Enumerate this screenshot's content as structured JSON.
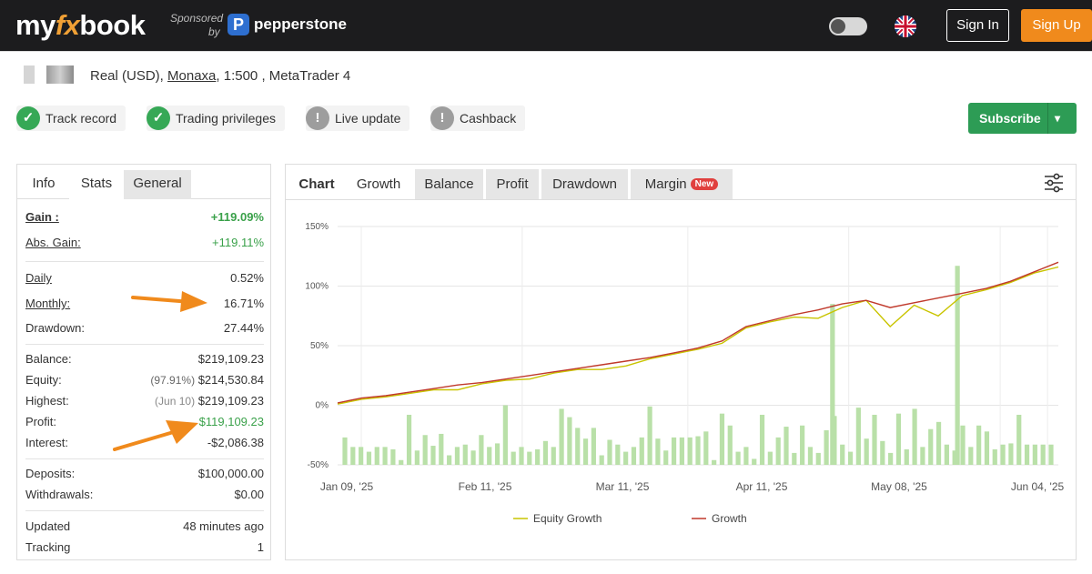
{
  "header": {
    "logo_my": "my",
    "logo_fx": "fx",
    "logo_book": "book",
    "sponsored_label": "Sponsored",
    "sponsored_by": "by",
    "sponsor_mark": "P",
    "sponsor_name": "pepperstone",
    "sign_in": "Sign In",
    "sign_up": "Sign Up",
    "flag_icon": "uk-flag-icon",
    "theme_toggle_icon": "theme-toggle-icon"
  },
  "account": {
    "prefix": "Real (USD),",
    "broker": "Monaxa",
    "rest": ", 1:500 , MetaTrader 4"
  },
  "badges": [
    {
      "label": "Track record",
      "status": "ok",
      "icon": "check-icon"
    },
    {
      "label": "Trading privileges",
      "status": "ok",
      "icon": "check-icon"
    },
    {
      "label": "Live update",
      "status": "warn",
      "icon": "exclamation-icon"
    },
    {
      "label": "Cashback",
      "status": "warn",
      "icon": "exclamation-icon"
    }
  ],
  "subscribe": {
    "label": "Subscribe",
    "caret": "▾"
  },
  "left_tabs": {
    "info": "Info",
    "stats": "Stats",
    "general": "General"
  },
  "stats": {
    "gain": {
      "label": "Gain :",
      "value": "+119.09%"
    },
    "abs_gain": {
      "label": "Abs. Gain:",
      "value": "+119.11%"
    },
    "daily": {
      "label": "Daily",
      "value": "0.52%"
    },
    "monthly": {
      "label": "Monthly:",
      "value": "16.71%"
    },
    "drawdown": {
      "label": "Drawdown:",
      "value": "27.44%"
    },
    "balance": {
      "label": "Balance:",
      "value": "$219,109.23"
    },
    "equity": {
      "label": "Equity:",
      "pre": "(97.91%)",
      "value": "$214,530.84"
    },
    "highest": {
      "label": "Highest:",
      "pre": "(Jun 10)",
      "value": "$219,109.23"
    },
    "profit": {
      "label": "Profit:",
      "value": "$119,109.23"
    },
    "interest": {
      "label": "Interest:",
      "value": "-$2,086.38"
    },
    "deposits": {
      "label": "Deposits:",
      "value": "$100,000.00"
    },
    "withdrawals": {
      "label": "Withdrawals:",
      "value": "$0.00"
    },
    "updated": {
      "label": "Updated",
      "value": "48 minutes ago"
    },
    "tracking": {
      "label": "Tracking",
      "value": "1"
    }
  },
  "chart_tabs": {
    "chart": "Chart",
    "growth": "Growth",
    "balance": "Balance",
    "profit": "Profit",
    "drawdown": "Drawdown",
    "margin": "Margin",
    "new_badge": "New"
  },
  "colors": {
    "equity_line": "#c9c400",
    "growth_line": "#c0392b",
    "bars": "#b9e0a8",
    "brand_orange": "#f08a1c",
    "subscribe_green": "#2d9c55"
  },
  "chart_data": {
    "type": "line",
    "title": "Growth",
    "ylim": [
      -50,
      150
    ],
    "y_ticks": [
      "150%",
      "100%",
      "50%",
      "0%",
      "-50%"
    ],
    "x_tick_labels": [
      "Jan 09, '25",
      "Feb 11, '25",
      "Mar 11, '25",
      "Apr 11, '25",
      "May 08, '25",
      "Jun 04, '25"
    ],
    "legend": [
      "Equity Growth",
      "Growth"
    ],
    "x": [
      0,
      5,
      10,
      15,
      20,
      25,
      30,
      35,
      40,
      45,
      50,
      55,
      60,
      65,
      70,
      75,
      80,
      85,
      90,
      95,
      100,
      105,
      110,
      115,
      120,
      125,
      130,
      135,
      140,
      145,
      150
    ],
    "series": [
      {
        "name": "Growth",
        "values": [
          2,
          6,
          8,
          11,
          14,
          17,
          19,
          22,
          25,
          28,
          31,
          34,
          37,
          40,
          44,
          48,
          54,
          66,
          71,
          76,
          80,
          85,
          88,
          82,
          86,
          90,
          94,
          98,
          104,
          112,
          120
        ]
      },
      {
        "name": "Equity Growth",
        "values": [
          1,
          5,
          7,
          10,
          13,
          13,
          18,
          21,
          22,
          27,
          30,
          30,
          33,
          39,
          43,
          47,
          52,
          65,
          70,
          74,
          73,
          82,
          88,
          66,
          84,
          75,
          92,
          97,
          103,
          111,
          116
        ]
      }
    ],
    "daily_bars": [
      -27,
      -35,
      -35,
      -39,
      -35,
      -35,
      -37,
      -46,
      -8,
      -38,
      -25,
      -34,
      -24,
      -42,
      -35,
      -33,
      -38,
      -25,
      -35,
      -32,
      0,
      -39,
      -35,
      -39,
      -37,
      -30,
      -35,
      -3,
      -10,
      -19,
      -28,
      -19,
      -42,
      -29,
      -33,
      -39,
      -35,
      -27,
      -1,
      -28,
      -38,
      -27,
      -27,
      -27,
      -26,
      -22,
      -46,
      -7,
      -17,
      -39,
      -35,
      -45,
      -8,
      -39,
      -27,
      -18,
      -40,
      -17,
      -35,
      -40,
      -21,
      -9,
      -33,
      -39,
      -2,
      -28,
      -8,
      -30,
      -40,
      -7,
      -37,
      -3,
      -35,
      -20,
      -14,
      -33,
      -38,
      -17,
      -35,
      -17,
      -22,
      -37,
      -33,
      -32,
      -8,
      -33,
      -33,
      -33,
      -33
    ],
    "spike_bars": [
      {
        "x": 103,
        "value": 85
      },
      {
        "x": 129,
        "value": 117
      }
    ]
  }
}
